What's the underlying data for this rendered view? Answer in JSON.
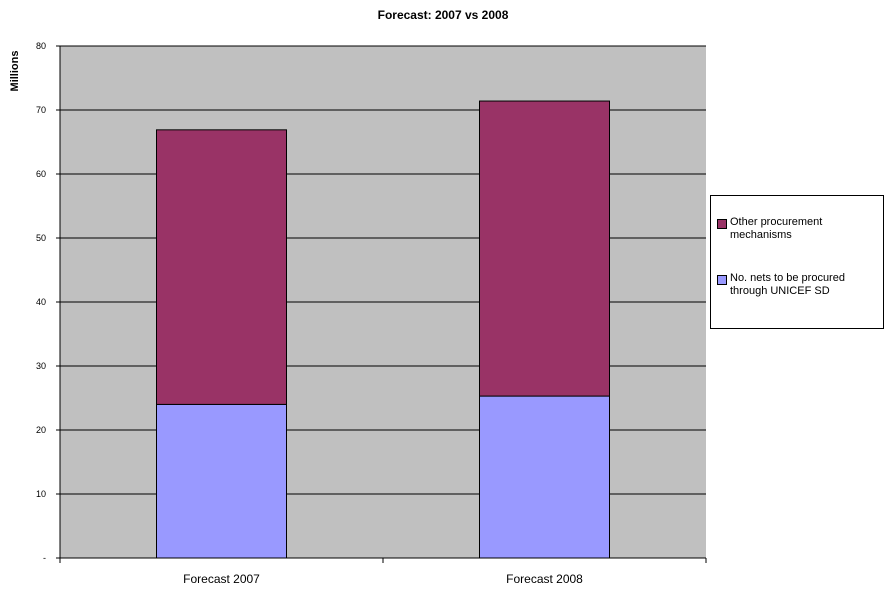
{
  "chart_data": {
    "type": "bar",
    "stacked": true,
    "title": "Forecast: 2007 vs 2008",
    "ylabel": "Millions",
    "xlabel": "",
    "categories": [
      "Forecast 2007",
      "Forecast 2008"
    ],
    "ylim": [
      0,
      80
    ],
    "yticks": [
      0,
      10,
      20,
      30,
      40,
      50,
      60,
      70,
      80
    ],
    "ytick_labels": [
      "-",
      "10",
      "20",
      "30",
      "40",
      "50",
      "60",
      "70",
      "80"
    ],
    "grid": true,
    "legend_position": "right",
    "series": [
      {
        "name": "No. nets to be procured through UNICEF SD",
        "values": [
          24.0,
          25.3
        ],
        "color": "#9999FF"
      },
      {
        "name": "Other procurement mechanisms",
        "values": [
          42.9,
          46.1
        ],
        "color": "#993366"
      }
    ],
    "plot_background": "#C0C0C0"
  }
}
